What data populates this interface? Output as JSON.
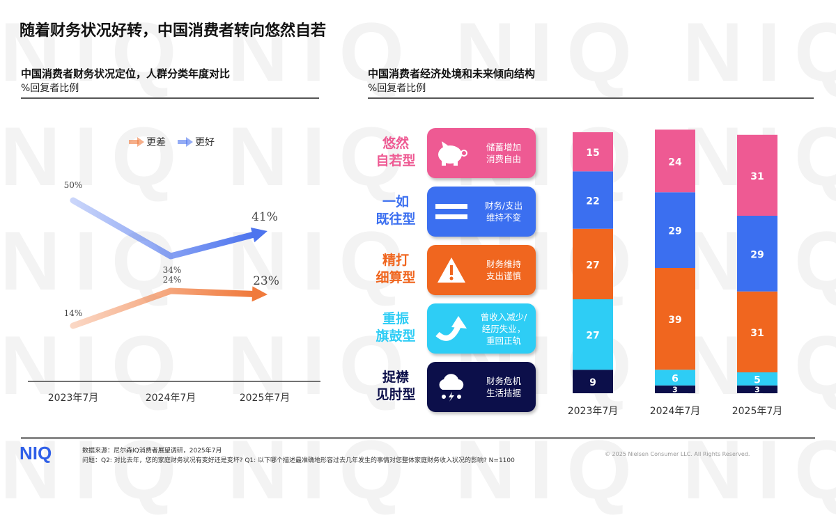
{
  "title": "随着财务状况好转，中国消费者转向悠然自若",
  "left": {
    "title": "中国消费者财务状况定位，人群分类年度对比",
    "subtitle": "%回复者比例"
  },
  "right": {
    "title": "中国消费者经济处境和未来倾向结构",
    "subtitle": "%回复者比例"
  },
  "segments": [
    {
      "name": "悠然\n自若型",
      "desc": "储蓄增加\n消费自由",
      "icon": "piggy-bank-icon",
      "color": "#ee5a93"
    },
    {
      "name": "一如\n既往型",
      "desc": "财务/支出\n维持不变",
      "icon": "equals-icon",
      "color": "#3b6ff0"
    },
    {
      "name": "精打\n细算型",
      "desc": "财务维持\n支出谨慎",
      "icon": "warning-icon",
      "color": "#f0661f"
    },
    {
      "name": "重振\n旗鼓型",
      "desc": "曾收入减少/\n经历失业，\n重回正轨",
      "icon": "arrow-up-curve-icon",
      "color": "#2ecdf5"
    },
    {
      "name": "捉襟\n见肘型",
      "desc": "财务危机\n生活拮据",
      "icon": "storm-cloud-icon",
      "color": "#0c0f4a"
    }
  ],
  "chart_data": [
    {
      "type": "line",
      "categories": [
        "2023年7月",
        "2024年7月",
        "2025年7月"
      ],
      "series": [
        {
          "name": "更差",
          "values": [
            14,
            24,
            23
          ],
          "color": "#f07a3c"
        },
        {
          "name": "更好",
          "values": [
            50,
            34,
            41
          ],
          "color": "#4d74ee"
        }
      ],
      "labels": {
        "更差": [
          "14%",
          "24%",
          "23%"
        ],
        "更好": [
          "50%",
          "34%",
          "41%"
        ]
      },
      "legend": "top-center",
      "unit": "%"
    },
    {
      "type": "bar",
      "stacked": true,
      "categories": [
        "2023年7月",
        "2024年7月",
        "2025年7月"
      ],
      "series": [
        {
          "segment": "捉襟见肘型",
          "values": [
            9,
            3,
            3
          ],
          "color": "#0c0f4a"
        },
        {
          "segment": "重振旗鼓型",
          "values": [
            27,
            6,
            5
          ],
          "color": "#2ecdf5"
        },
        {
          "segment": "精打细算型",
          "values": [
            27,
            39,
            31
          ],
          "color": "#f0661f"
        },
        {
          "segment": "一如既往型",
          "values": [
            22,
            29,
            29
          ],
          "color": "#3b6ff0"
        },
        {
          "segment": "悠然自若型",
          "values": [
            15,
            24,
            31
          ],
          "color": "#ee5a93"
        }
      ]
    }
  ],
  "footer": {
    "logo": "NIQ",
    "source": "数据来源：尼尔森IQ消费者展望调研，2025年7月",
    "question": "问题：Q2: 对比去年，您的家庭财务状况有变好还是变坏? Q1: 以下哪个描述最准确地形容过去几年发生的事情对您整体家庭财务收入状况的影响? N=1100",
    "copyright": "© 2025 Nielsen Consumer LLC. All Rights Reserved."
  }
}
